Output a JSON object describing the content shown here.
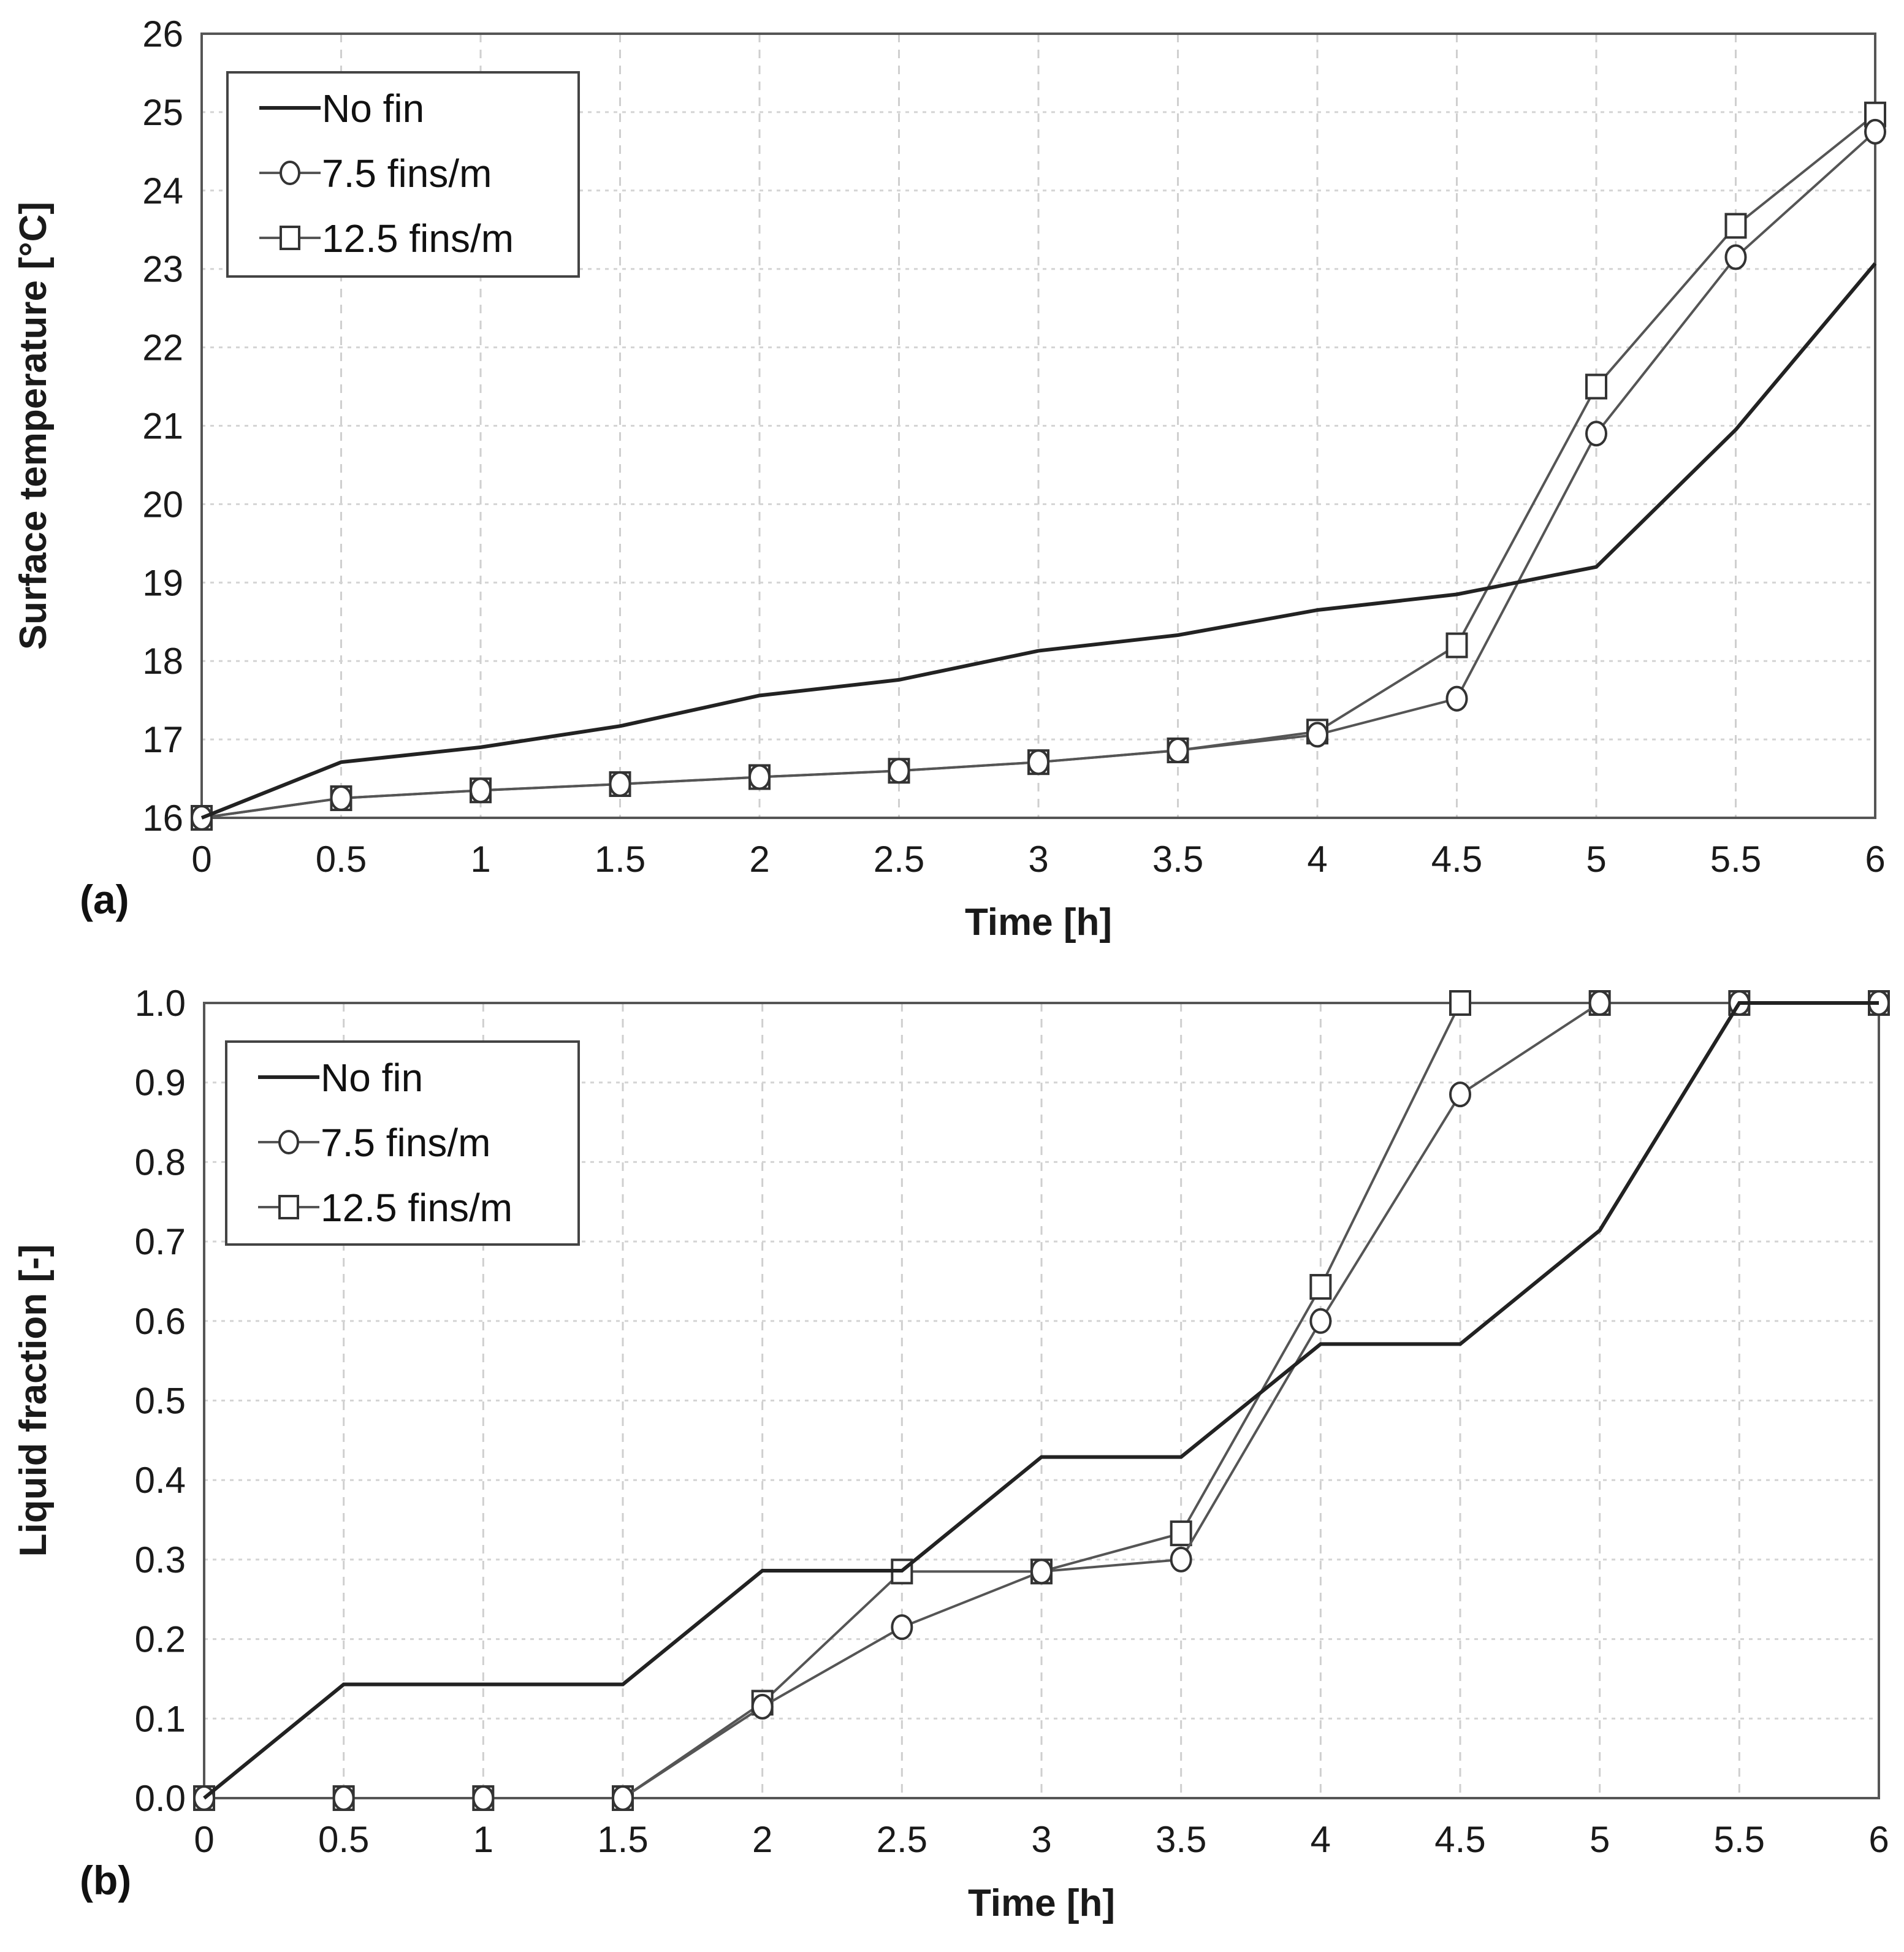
{
  "chart_data": [
    {
      "type": "line",
      "panel_label": "(a)",
      "xlabel": "Time [h]",
      "ylabel": "Surface temperature [°C]",
      "xlim": [
        0,
        6
      ],
      "ylim": [
        16,
        26
      ],
      "xticks": [
        "0",
        "0.5",
        "1",
        "1.5",
        "2",
        "2.5",
        "3",
        "3.5",
        "4",
        "4.5",
        "5",
        "5.5",
        "6"
      ],
      "yticks": [
        "16",
        "17",
        "18",
        "19",
        "20",
        "21",
        "22",
        "23",
        "24",
        "25",
        "26"
      ],
      "grid": true,
      "legend_position": "top-left",
      "x": [
        0,
        0.5,
        1,
        1.5,
        2,
        2.5,
        3,
        3.5,
        4,
        4.5,
        5,
        5.5,
        6
      ],
      "series": [
        {
          "name": "No fin",
          "marker": "none",
          "color": "#222222",
          "values": [
            16,
            16.71,
            16.9,
            17.17,
            17.56,
            17.76,
            18.13,
            18.33,
            18.65,
            18.85,
            19.2,
            20.95,
            23.07
          ]
        },
        {
          "name": "7.5 fins/m",
          "marker": "circle",
          "color": "#555555",
          "values": [
            16,
            16.25,
            16.35,
            16.43,
            16.52,
            16.6,
            16.71,
            16.86,
            17.06,
            17.52,
            20.9,
            23.15,
            24.75
          ]
        },
        {
          "name": "12.5 fins/m",
          "marker": "square",
          "color": "#555555",
          "values": [
            16,
            16.25,
            16.35,
            16.43,
            16.52,
            16.6,
            16.71,
            16.86,
            17.1,
            18.2,
            21.5,
            23.55,
            24.97
          ]
        }
      ]
    },
    {
      "type": "line",
      "panel_label": "(b)",
      "xlabel": "Time [h]",
      "ylabel": "Liquid fraction [-]",
      "xlim": [
        0,
        6
      ],
      "ylim": [
        0,
        1
      ],
      "xticks": [
        "0",
        "0.5",
        "1",
        "1.5",
        "2",
        "2.5",
        "3",
        "3.5",
        "4",
        "4.5",
        "5",
        "5.5",
        "6"
      ],
      "yticks": [
        "0.0",
        "0.1",
        "0.2",
        "0.3",
        "0.4",
        "0.5",
        "0.6",
        "0.7",
        "0.8",
        "0.9",
        "1.0"
      ],
      "grid": true,
      "legend_position": "top-left",
      "x": [
        0,
        0.5,
        1,
        1.5,
        2,
        2.5,
        3,
        3.5,
        4,
        4.5,
        5,
        5.5,
        6
      ],
      "series": [
        {
          "name": "No fin",
          "marker": "none",
          "color": "#222222",
          "values": [
            0,
            0.143,
            0.143,
            0.143,
            0.286,
            0.286,
            0.429,
            0.429,
            0.571,
            0.571,
            0.714,
            1.0,
            1.0
          ]
        },
        {
          "name": "7.5 fins/m",
          "marker": "circle",
          "color": "#555555",
          "values": [
            0,
            0,
            0,
            0,
            0.115,
            0.215,
            0.285,
            0.3,
            0.6,
            0.885,
            1.0,
            1.0,
            1.0
          ]
        },
        {
          "name": "12.5 fins/m",
          "marker": "square",
          "color": "#555555",
          "values": [
            0,
            0,
            0,
            0,
            0.12,
            0.285,
            0.285,
            0.333,
            0.643,
            1.0,
            1.0,
            1.0,
            1.0
          ]
        }
      ]
    }
  ]
}
